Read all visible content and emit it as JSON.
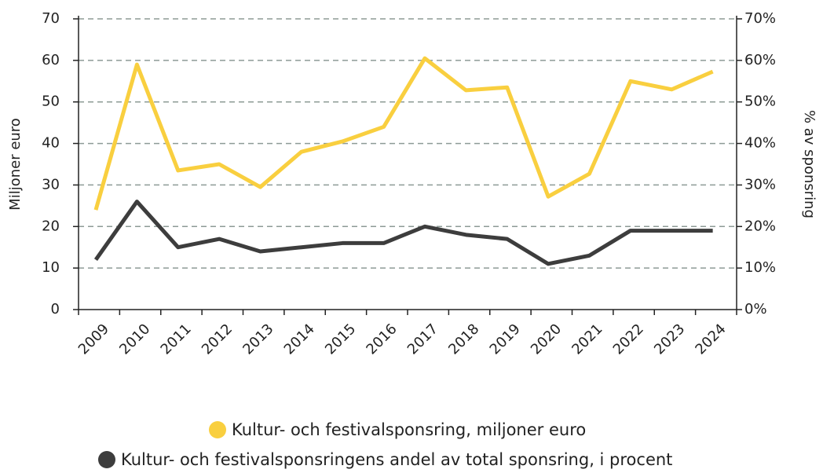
{
  "chart_data": {
    "type": "line",
    "ylabel": "Miljoner euro",
    "y2label": "% av sponsring",
    "categories": [
      "2009",
      "2010",
      "2011",
      "2012",
      "2013",
      "2014",
      "2015",
      "2016",
      "2017",
      "2018",
      "2019",
      "2020",
      "2021",
      "2022",
      "2023",
      "2024"
    ],
    "series": [
      {
        "name": "Kultur- och festivalsponsring, miljoner euro",
        "color": "#f9cf3f",
        "values": [
          24,
          59,
          33.5,
          35,
          29.5,
          38,
          40.5,
          44,
          60.5,
          52.8,
          53.5,
          27.2,
          32.7,
          55,
          53,
          57.3
        ]
      },
      {
        "name": "Kultur- och festivalsponsringens andel av total sponsring, i procent",
        "color": "#3d3d3d",
        "axis": "y2",
        "values": [
          12,
          26,
          15,
          17,
          14,
          15,
          16,
          16,
          20,
          18,
          17,
          11,
          13,
          19,
          19,
          19
        ]
      }
    ],
    "ylim": [
      0,
      70
    ],
    "yticks": [
      0,
      10,
      20,
      30,
      40,
      50,
      60,
      70
    ],
    "y2lim": [
      0,
      70
    ],
    "y2ticks": [
      {
        "value": 0,
        "label": "0%"
      },
      {
        "value": 10,
        "label": "10%"
      },
      {
        "value": 20,
        "label": "20%"
      },
      {
        "value": 30,
        "label": "30%"
      },
      {
        "value": 40,
        "label": "40%"
      },
      {
        "value": 50,
        "label": "50%"
      },
      {
        "value": 60,
        "label": "60%"
      },
      {
        "value": 70,
        "label": "70%"
      }
    ],
    "grid": true
  }
}
